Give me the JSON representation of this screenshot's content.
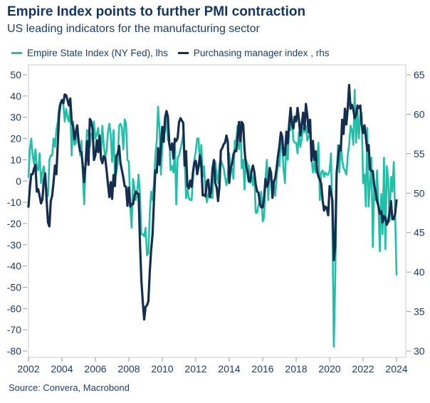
{
  "header": {
    "title": "Empire Index points to further PMI contraction",
    "subtitle": "US leading indicators for the manufacturing sector"
  },
  "footer": {
    "source": "Source: Convera, Macrobond"
  },
  "chart_data": {
    "type": "line",
    "title": "Empire Index points to further PMI contraction",
    "x_start": 2002.0,
    "x_step_years": 0.0833333,
    "x_axis": {
      "ticks": [
        2002,
        2004,
        2006,
        2008,
        2010,
        2012,
        2014,
        2016,
        2018,
        2020,
        2022,
        2024
      ]
    },
    "left_axis": {
      "ticks": [
        50,
        40,
        30,
        20,
        10,
        0,
        -10,
        -20,
        -30,
        -40,
        -50,
        -60,
        -70,
        -80
      ],
      "ylim": [
        -80,
        50
      ]
    },
    "right_axis": {
      "ticks": [
        65,
        60,
        55,
        50,
        45,
        40,
        35,
        30
      ],
      "ylim": [
        30,
        65
      ]
    },
    "frame_color": "#c8c8c8",
    "tick_color": "#9a9a9a",
    "series": [
      {
        "id": "empire",
        "name": "Empire State Index (NY Fed), lhs",
        "axis": "lhs",
        "color": "#21bfa7",
        "values": [
          2,
          15,
          20,
          12,
          8,
          15,
          6,
          5,
          13,
          -1,
          4,
          7,
          0,
          -5,
          -7,
          10,
          12,
          12,
          20,
          16,
          24,
          28,
          35,
          37,
          38,
          36,
          28,
          34,
          30,
          28,
          35,
          12,
          28,
          17,
          18,
          26,
          20,
          12,
          19,
          2,
          -11,
          10,
          24,
          23,
          16,
          22,
          23,
          28,
          20,
          22,
          25,
          16,
          13,
          26,
          17,
          11,
          14,
          23,
          27,
          22,
          9,
          24,
          2,
          4,
          8,
          26,
          27,
          25,
          15,
          29,
          27,
          10,
          9,
          -12,
          -22,
          1,
          -3,
          -9,
          -5,
          3,
          -7,
          -25,
          -25,
          -26,
          -22,
          -35,
          -34,
          -15,
          -5,
          -9,
          -1,
          12,
          19,
          35,
          24,
          3,
          16,
          25,
          23,
          32,
          19,
          20,
          5,
          7,
          4,
          16,
          -11,
          11,
          12,
          15,
          18,
          22,
          12,
          -8,
          -4,
          -8,
          -9,
          -9,
          1,
          10,
          14,
          20,
          20,
          7,
          17,
          2,
          7,
          -6,
          -10,
          -6,
          -5,
          -8,
          -8,
          10,
          9,
          3,
          -1,
          8,
          10,
          8,
          6,
          2,
          -2,
          2,
          13,
          5,
          6,
          1,
          19,
          19,
          26,
          15,
          28,
          6,
          10,
          -4,
          10,
          8,
          7,
          -1,
          3,
          -2,
          4,
          -15,
          -15,
          -11,
          -11,
          -5,
          -19,
          -17,
          1,
          10,
          -9,
          6,
          1,
          -4,
          -2,
          -7,
          2,
          9,
          7,
          19,
          16,
          5,
          -1,
          20,
          10,
          25,
          24,
          30,
          19,
          18,
          18,
          13,
          23,
          16,
          20,
          25,
          23,
          26,
          19,
          21,
          23,
          11,
          4,
          9,
          4,
          10,
          18,
          -9,
          4,
          5,
          2,
          4,
          3,
          3,
          5,
          13,
          -21,
          -78,
          -48,
          0,
          17,
          4,
          17,
          10,
          6,
          5,
          3,
          12,
          17,
          26,
          24,
          17,
          43,
          18,
          34,
          20,
          31,
          32,
          -1,
          3,
          -12,
          25,
          -12,
          -1,
          11,
          -31,
          -2,
          -9,
          5,
          -11,
          -33,
          -6,
          -25,
          11,
          -32,
          7,
          1,
          -19,
          2,
          -5,
          9,
          -15,
          -44
        ]
      },
      {
        "id": "pmi",
        "name": "Purchasing manager index , rhs",
        "axis": "rhs",
        "color": "#132e4f",
        "values": [
          48.3,
          50.7,
          52.4,
          52.4,
          53.1,
          53.6,
          50.2,
          50.5,
          49.6,
          48.7,
          49.2,
          51.6,
          52.5,
          49.1,
          46.3,
          45.8,
          49.0,
          49.7,
          51.4,
          53.5,
          52.4,
          56.1,
          60.1,
          61.3,
          61.8,
          61.4,
          62.5,
          62.4,
          61.8,
          61.1,
          62.0,
          59.0,
          58.5,
          56.8,
          57.8,
          58.6,
          56.4,
          55.3,
          55.2,
          53.3,
          51.4,
          53.8,
          56.6,
          53.6,
          59.4,
          59.1,
          58.1,
          54.2,
          54.8,
          56.7,
          55.2,
          57.3,
          54.4,
          53.8,
          54.7,
          54.5,
          52.9,
          51.2,
          49.5,
          51.4,
          49.3,
          52.3,
          50.9,
          54.7,
          55.0,
          56.0,
          53.8,
          52.9,
          52.0,
          50.9,
          50.8,
          48.4,
          50.7,
          48.3,
          48.6,
          48.6,
          49.6,
          50.2,
          50.0,
          49.9,
          43.5,
          38.9,
          36.2,
          34.0,
          35.6,
          35.8,
          36.3,
          40.1,
          42.8,
          44.8,
          48.9,
          52.9,
          52.6,
          55.7,
          53.6,
          55.9,
          58.4,
          56.5,
          59.6,
          60.4,
          59.7,
          56.2,
          55.5,
          56.3,
          54.4,
          56.9,
          56.6,
          57.0,
          59.0,
          59.5,
          59.2,
          58.9,
          53.5,
          55.3,
          50.9,
          50.6,
          51.6,
          50.8,
          52.7,
          53.9,
          54.1,
          52.4,
          53.4,
          54.8,
          53.5,
          49.7,
          49.8,
          49.6,
          51.5,
          51.7,
          49.5,
          50.2,
          53.1,
          54.2,
          51.3,
          50.7,
          49.0,
          50.9,
          55.4,
          55.7,
          56.2,
          56.4,
          57.3,
          56.5,
          51.3,
          53.2,
          53.7,
          54.9,
          55.4,
          55.3,
          57.1,
          59.0,
          56.6,
          59.0,
          58.7,
          55.5,
          53.5,
          52.9,
          51.5,
          51.5,
          52.8,
          53.5,
          52.7,
          51.1,
          50.2,
          50.1,
          48.6,
          48.2,
          48.2,
          49.5,
          51.8,
          50.8,
          51.3,
          53.2,
          52.6,
          49.4,
          51.5,
          51.9,
          53.2,
          54.7,
          56.0,
          57.7,
          57.2,
          54.8,
          54.9,
          57.8,
          56.3,
          58.8,
          60.8,
          58.7,
          58.2,
          59.7,
          59.1,
          60.8,
          59.3,
          57.3,
          58.7,
          60.2,
          58.1,
          61.3,
          59.8,
          57.7,
          59.3,
          54.1,
          56.6,
          54.2,
          55.3,
          52.8,
          52.1,
          51.7,
          51.2,
          49.1,
          47.8,
          48.3,
          48.1,
          47.2,
          50.9,
          50.1,
          49.1,
          41.5,
          43.1,
          52.6,
          54.2,
          56.0,
          55.4,
          59.3,
          57.5,
          60.7,
          58.7,
          60.8,
          63.7,
          60.7,
          61.2,
          60.6,
          59.5,
          59.9,
          61.1,
          60.8,
          61.1,
          58.7,
          57.6,
          58.6,
          57.1,
          55.4,
          56.1,
          53.0,
          52.8,
          52.8,
          50.9,
          50.2,
          49.0,
          48.4,
          47.4,
          47.7,
          46.3,
          47.1,
          46.9,
          46.0,
          46.4,
          47.6,
          49.0,
          46.7,
          46.7,
          47.4,
          49.1
        ]
      }
    ]
  }
}
